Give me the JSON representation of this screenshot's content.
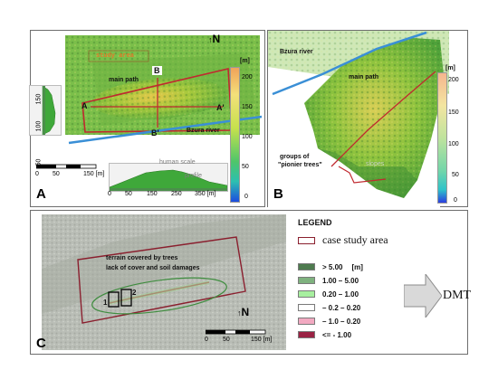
{
  "panelA": {
    "letter": "A",
    "north": "N",
    "unit": "[m]",
    "colorbar_ticks": [
      "200",
      "150",
      "100",
      "50",
      "0"
    ],
    "labels": {
      "study_area": "study area",
      "main_path": "main path",
      "bzura": "Bzura river",
      "A": "A",
      "A_prime": "A'",
      "B": "B",
      "B_prime": "B'",
      "human_scale": "human scale",
      "profile": "profile"
    },
    "vertical_scale": [
      "50",
      "100",
      "150"
    ],
    "horizontal_scale": [
      "0",
      "50",
      "150 [m]"
    ],
    "profile_ticks": [
      "0",
      "50",
      "150",
      "250",
      "350 [m]"
    ]
  },
  "panelB": {
    "letter": "B",
    "unit": "[m]",
    "colorbar_ticks": [
      "200",
      "150",
      "100",
      "50",
      "0"
    ],
    "labels": {
      "bzura": "Bzura river",
      "main_path": "main path",
      "groups_line1": "groups of",
      "groups_line2": "\"pionier trees\"",
      "slopes": "slopes"
    }
  },
  "panelC": {
    "letter": "C",
    "north": "N",
    "terrain_line1": "terrain covered by trees",
    "terrain_line2": "lack of cover and soil damages",
    "marker1": "1",
    "marker2": "2",
    "scale": [
      "0",
      "50",
      "150 [m]"
    ]
  },
  "legend": {
    "title": "LEGEND",
    "case_study": "case study area",
    "items": [
      {
        "label": "> 5.00",
        "unit": "[m]",
        "color": "#4e7b4f"
      },
      {
        "label": "1.00 – 5.00",
        "unit": "",
        "color": "#7fb27f"
      },
      {
        "label": "0.20 – 1.00",
        "unit": "",
        "color": "#a7ef9f"
      },
      {
        "label": "– 0.2 – 0.20",
        "unit": "",
        "color": "#ffffff"
      },
      {
        "label": "– 1.0 – 0.20",
        "unit": "",
        "color": "#f2a9c1"
      },
      {
        "label": "<= - 1.00",
        "unit": "",
        "color": "#9a2244"
      }
    ],
    "dmt": "DMT"
  },
  "colors": {
    "study_boundary": "#c0292f",
    "river": "#3a8fd6",
    "panel_border": "#6e6e6e",
    "terrain_green": "#76c24a"
  }
}
